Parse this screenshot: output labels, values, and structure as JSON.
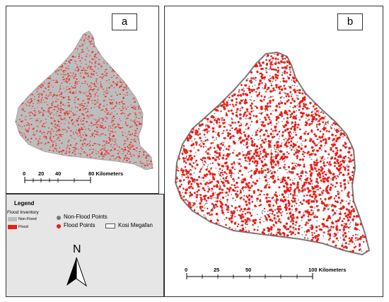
{
  "panel_a": {
    "label": "a",
    "scale_ticks": [
      "0",
      "20",
      "40"
    ],
    "scale_end": "80 Kilometers"
  },
  "panel_b": {
    "label": "b",
    "scale_ticks": [
      "0",
      "25",
      "50"
    ],
    "scale_end": "100 Kilometers"
  },
  "legend": {
    "title": "Legend",
    "subtitle": "Flood Inventory",
    "non_flood_class": "Non-Flood",
    "flood_class": "Flood",
    "non_flood_points": "Non-Flood Points",
    "flood_points": "Flood Points",
    "boundary": "Kosi Megafan",
    "north": "N"
  },
  "colors": {
    "flood": "#ee1c16",
    "non_flood": "#bdbdbd",
    "non_flood_point": "#6f7a7a",
    "legend_bg": "#e6e6e6",
    "boundary": "#7a7a7a"
  }
}
